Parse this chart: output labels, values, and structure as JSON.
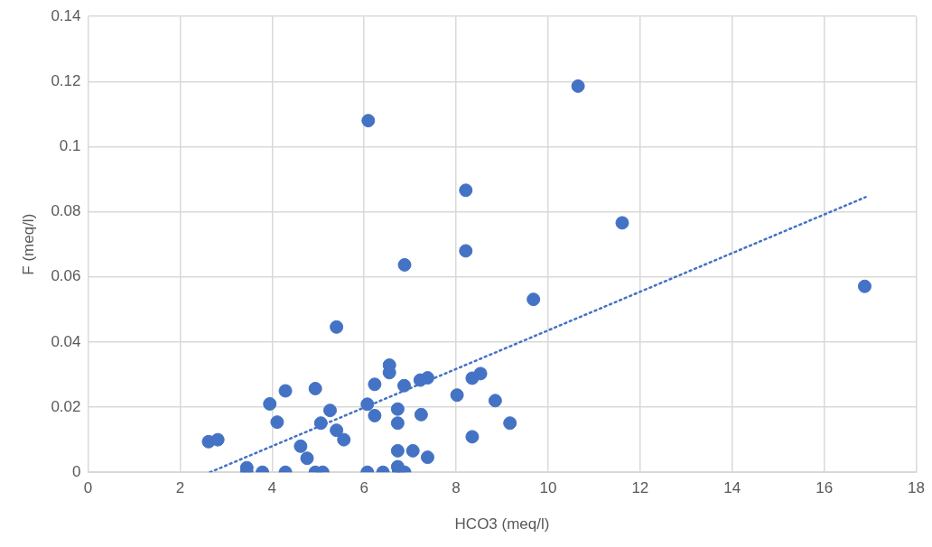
{
  "chart_data": {
    "type": "scatter",
    "xlabel": "HCO3 (meq/l)",
    "ylabel": "F (meq/l)",
    "xlim": [
      0,
      18
    ],
    "xticks": [
      0,
      2,
      4,
      6,
      8,
      10,
      12,
      14,
      16,
      18
    ],
    "ylim": [
      0,
      0.14
    ],
    "yticks": [
      0,
      0.02,
      0.04,
      0.06,
      0.08,
      0.1,
      0.12,
      0.14
    ],
    "grid": true,
    "legend": false,
    "marker": "circle",
    "series": [
      {
        "type": "scatter",
        "color": "#4472c4",
        "x": [
          2.62,
          2.82,
          3.45,
          3.45,
          3.79,
          3.95,
          4.11,
          4.29,
          4.29,
          4.62,
          4.76,
          4.94,
          4.94,
          5.1,
          5.06,
          5.26,
          5.4,
          5.56,
          6.07,
          6.07,
          6.23,
          6.23,
          6.55,
          6.55,
          6.87,
          6.73,
          6.73,
          7.24,
          7.22,
          7.38,
          6.73,
          7.06,
          7.38,
          6.41,
          6.73,
          6.75,
          6.88,
          8.02,
          8.35,
          8.53,
          8.85,
          9.17,
          8.35,
          6.09,
          10.65,
          8.21,
          8.21,
          11.61,
          6.88,
          9.68,
          16.88,
          5.4
        ],
        "values": [
          0.0094,
          0.01,
          0.0014,
          0,
          0,
          0.021,
          0.0154,
          0.025,
          0,
          0.008,
          0.0043,
          0.0257,
          0,
          0,
          0.0151,
          0.019,
          0.0129,
          0.01,
          0,
          0.0209,
          0.0174,
          0.027,
          0.0329,
          0.0306,
          0.0266,
          0.0194,
          0.0151,
          0.0177,
          0.0283,
          0.029,
          0.0066,
          0.0066,
          0.0046,
          0,
          0.0017,
          0,
          0,
          0.0237,
          0.0289,
          0.0303,
          0.022,
          0.0151,
          0.0109,
          0.108,
          0.1186,
          0.0866,
          0.068,
          0.0766,
          0.0637,
          0.0531,
          0.0571,
          0.0446
        ]
      },
      {
        "type": "line",
        "color": "#4472c4",
        "line_style": "dotted",
        "marker": "none",
        "x": [
          2.65,
          16.9
        ],
        "values": [
          0,
          0.0845
        ]
      }
    ]
  }
}
